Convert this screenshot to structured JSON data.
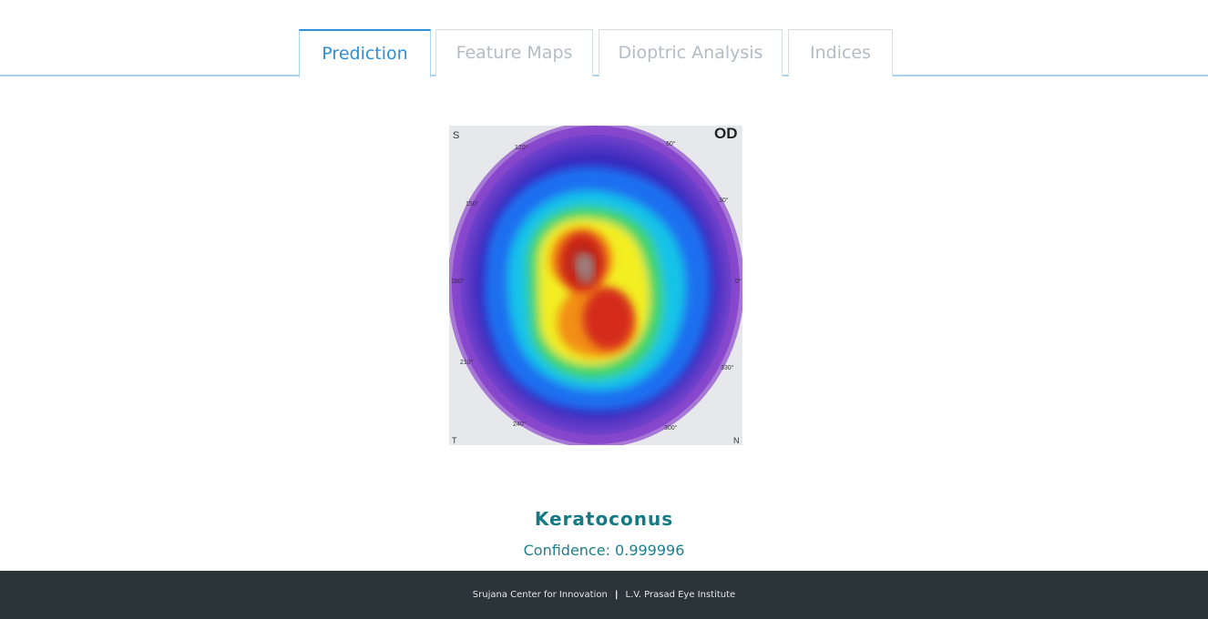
{
  "tabs": [
    {
      "label": "Prediction",
      "active": true
    },
    {
      "label": "Feature Maps",
      "active": false
    },
    {
      "label": "Dioptric Analysis",
      "active": false
    },
    {
      "label": "Indices",
      "active": false
    }
  ],
  "map": {
    "eye_label": "OD",
    "corner_labels": {
      "top_left": "S",
      "bottom_left": "T",
      "bottom_right": "N"
    },
    "angle_labels": [
      "120°",
      "60°",
      "150°",
      "30°",
      "180°",
      "0°",
      "210°",
      "330°",
      "240°",
      "300°"
    ],
    "colors": {
      "outer": "#7a3fbf",
      "blue_dark": "#1f2fc8",
      "blue": "#1a7cf0",
      "cyan": "#19c9e6",
      "green": "#44d46a",
      "yellow": "#f4ee22",
      "orange": "#f29a12",
      "red": "#d8281c",
      "core": "#8f7f7f"
    }
  },
  "result": {
    "diagnosis": "Keratoconus",
    "confidence_text": "Confidence: 0.999996"
  },
  "footer": {
    "left": "Srujana Center for Innovation",
    "separator": "|",
    "right": "L.V. Prasad Eye Institute"
  }
}
